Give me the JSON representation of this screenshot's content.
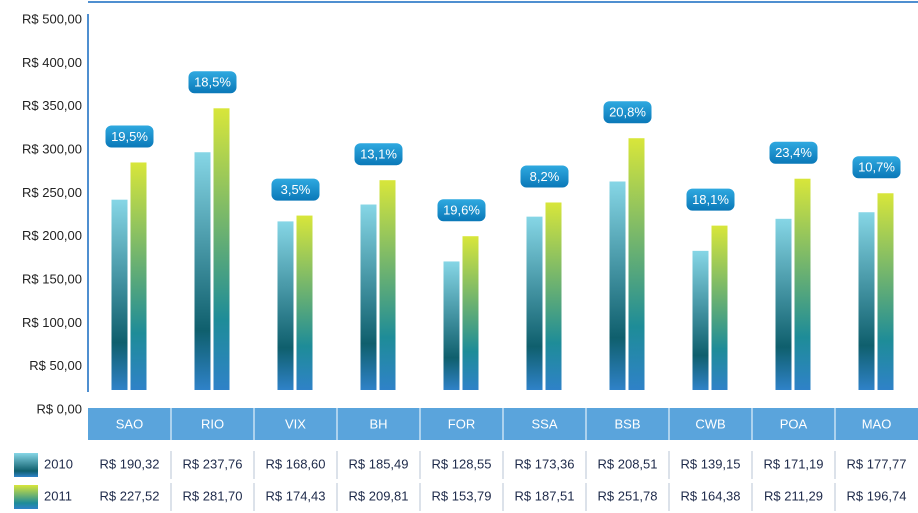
{
  "chart_data": {
    "type": "bar",
    "categories": [
      "SAO",
      "RIO",
      "VIX",
      "BH",
      "FOR",
      "SSA",
      "BSB",
      "CWB",
      "POA",
      "MAO"
    ],
    "series": [
      {
        "name": "2010",
        "gradient": [
          "#86d6e6",
          "#0f5f6d",
          "#2f82c8"
        ],
        "values": [
          190.32,
          237.76,
          168.6,
          185.49,
          128.55,
          173.36,
          208.51,
          139.15,
          171.19,
          177.77
        ],
        "value_labels": [
          "R$ 190,32",
          "R$ 237,76",
          "R$ 168,60",
          "R$ 185,49",
          "R$ 128,55",
          "R$ 173,36",
          "R$ 208,51",
          "R$ 139,15",
          "R$ 171,19",
          "R$ 177,77"
        ]
      },
      {
        "name": "2011",
        "gradient": [
          "#d8e63a",
          "#1e8c98",
          "#2f82c8"
        ],
        "values": [
          227.52,
          281.7,
          174.43,
          209.81,
          153.79,
          187.51,
          251.78,
          164.38,
          211.29,
          196.74
        ],
        "value_labels": [
          "R$ 227,52",
          "R$ 281,70",
          "R$ 174,43",
          "R$ 209,81",
          "R$ 153,79",
          "R$ 187,51",
          "R$ 251,78",
          "R$ 164,38",
          "R$ 211,29",
          "R$ 196,74"
        ]
      }
    ],
    "growth_labels": [
      "19,5%",
      "18,5%",
      "3,5%",
      "13,1%",
      "19,6%",
      "8,2%",
      "20,8%",
      "18,1%",
      "23,4%",
      "10,7%"
    ],
    "y_axis_labels": [
      "R$ 0,00",
      "R$ 50,00",
      "R$ 100,00",
      "R$ 150,00",
      "R$ 200,00",
      "R$ 250,00",
      "R$ 300,00",
      "R$ 350,00",
      "R$ 400,00",
      "R$ 500,00"
    ],
    "ylim": [
      0,
      380
    ]
  }
}
